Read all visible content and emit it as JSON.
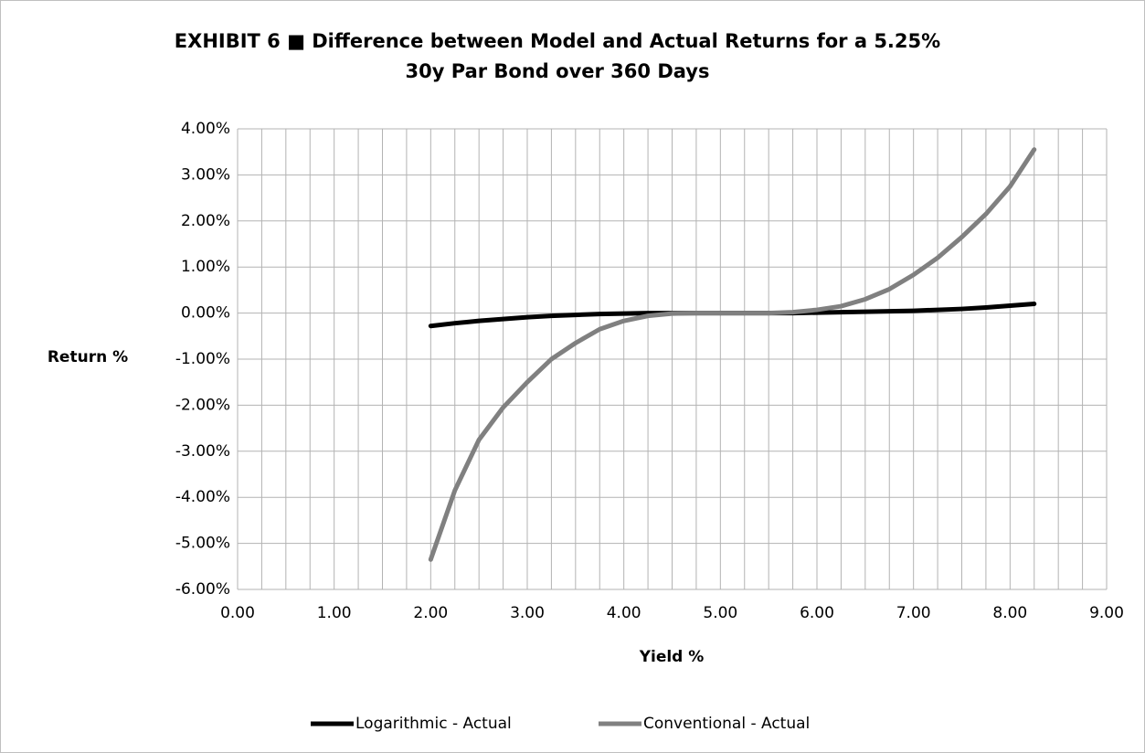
{
  "chart_data": {
    "type": "line",
    "title": [
      "EXHIBIT 6 ■ Difference between Model and Actual Returns for a 5.25%",
      "30y Par Bond over 360 Days"
    ],
    "xlabel": "Yield %",
    "ylabel": "Return %",
    "x": [
      2,
      2.25,
      2.5,
      2.75,
      3,
      3.25,
      3.5,
      3.75,
      4,
      4.25,
      4.5,
      4.75,
      5,
      5.25,
      5.5,
      5.75,
      6,
      6.25,
      6.5,
      6.75,
      7,
      7.25,
      7.5,
      7.75,
      8,
      8.25
    ],
    "series": [
      {
        "name": "Logarithmic - Actual",
        "color": "#000000",
        "values": [
          -0.28,
          -0.22,
          -0.17,
          -0.13,
          -0.09,
          -0.06,
          -0.04,
          -0.02,
          -0.01,
          0,
          0,
          0,
          0,
          0,
          0,
          0,
          0.01,
          0.02,
          0.03,
          0.04,
          0.05,
          0.07,
          0.09,
          0.12,
          0.16,
          0.2
        ]
      },
      {
        "name": "Conventional - Actual",
        "color": "#808080",
        "values": [
          -5.35,
          -3.85,
          -2.75,
          -2.05,
          -1.5,
          -1.0,
          -0.65,
          -0.35,
          -0.17,
          -0.06,
          -0.01,
          0,
          0,
          0,
          0,
          0.02,
          0.07,
          0.15,
          0.3,
          0.52,
          0.83,
          1.2,
          1.65,
          2.15,
          2.75,
          3.55
        ]
      }
    ],
    "xlim": [
      0,
      9
    ],
    "xticks": [
      {
        "value": 0,
        "label": "0.00"
      },
      {
        "value": 1,
        "label": "1.00"
      },
      {
        "value": 2,
        "label": "2.00"
      },
      {
        "value": 3,
        "label": "3.00"
      },
      {
        "value": 4,
        "label": "4.00"
      },
      {
        "value": 5,
        "label": "5.00"
      },
      {
        "value": 6,
        "label": "6.00"
      },
      {
        "value": 7,
        "label": "7.00"
      },
      {
        "value": 8,
        "label": "8.00"
      },
      {
        "value": 9,
        "label": "9.00"
      }
    ],
    "x_minor_ticks": [
      0.25,
      0.5,
      0.75,
      1.25,
      1.5,
      1.75,
      2.25,
      2.5,
      2.75,
      3.25,
      3.5,
      3.75,
      4.25,
      4.5,
      4.75,
      5.25,
      5.5,
      5.75,
      6.25,
      6.5,
      6.75,
      7.25,
      7.5,
      7.75,
      8.25,
      8.5,
      8.75
    ],
    "ylim": [
      -6,
      4
    ],
    "yticks": [
      {
        "value": 4,
        "label": "4.00%"
      },
      {
        "value": 3,
        "label": "3.00%"
      },
      {
        "value": 2,
        "label": "2.00%"
      },
      {
        "value": 1,
        "label": "1.00%"
      },
      {
        "value": 0,
        "label": "0.00%"
      },
      {
        "value": -1,
        "label": "-1.00%"
      },
      {
        "value": -2,
        "label": "-2.00%"
      },
      {
        "value": -3,
        "label": "-3.00%"
      },
      {
        "value": -4,
        "label": "-4.00%"
      },
      {
        "value": -5,
        "label": "-5.00%"
      },
      {
        "value": -6,
        "label": "-6.00%"
      }
    ],
    "grid": true,
    "legend": "bottom"
  }
}
